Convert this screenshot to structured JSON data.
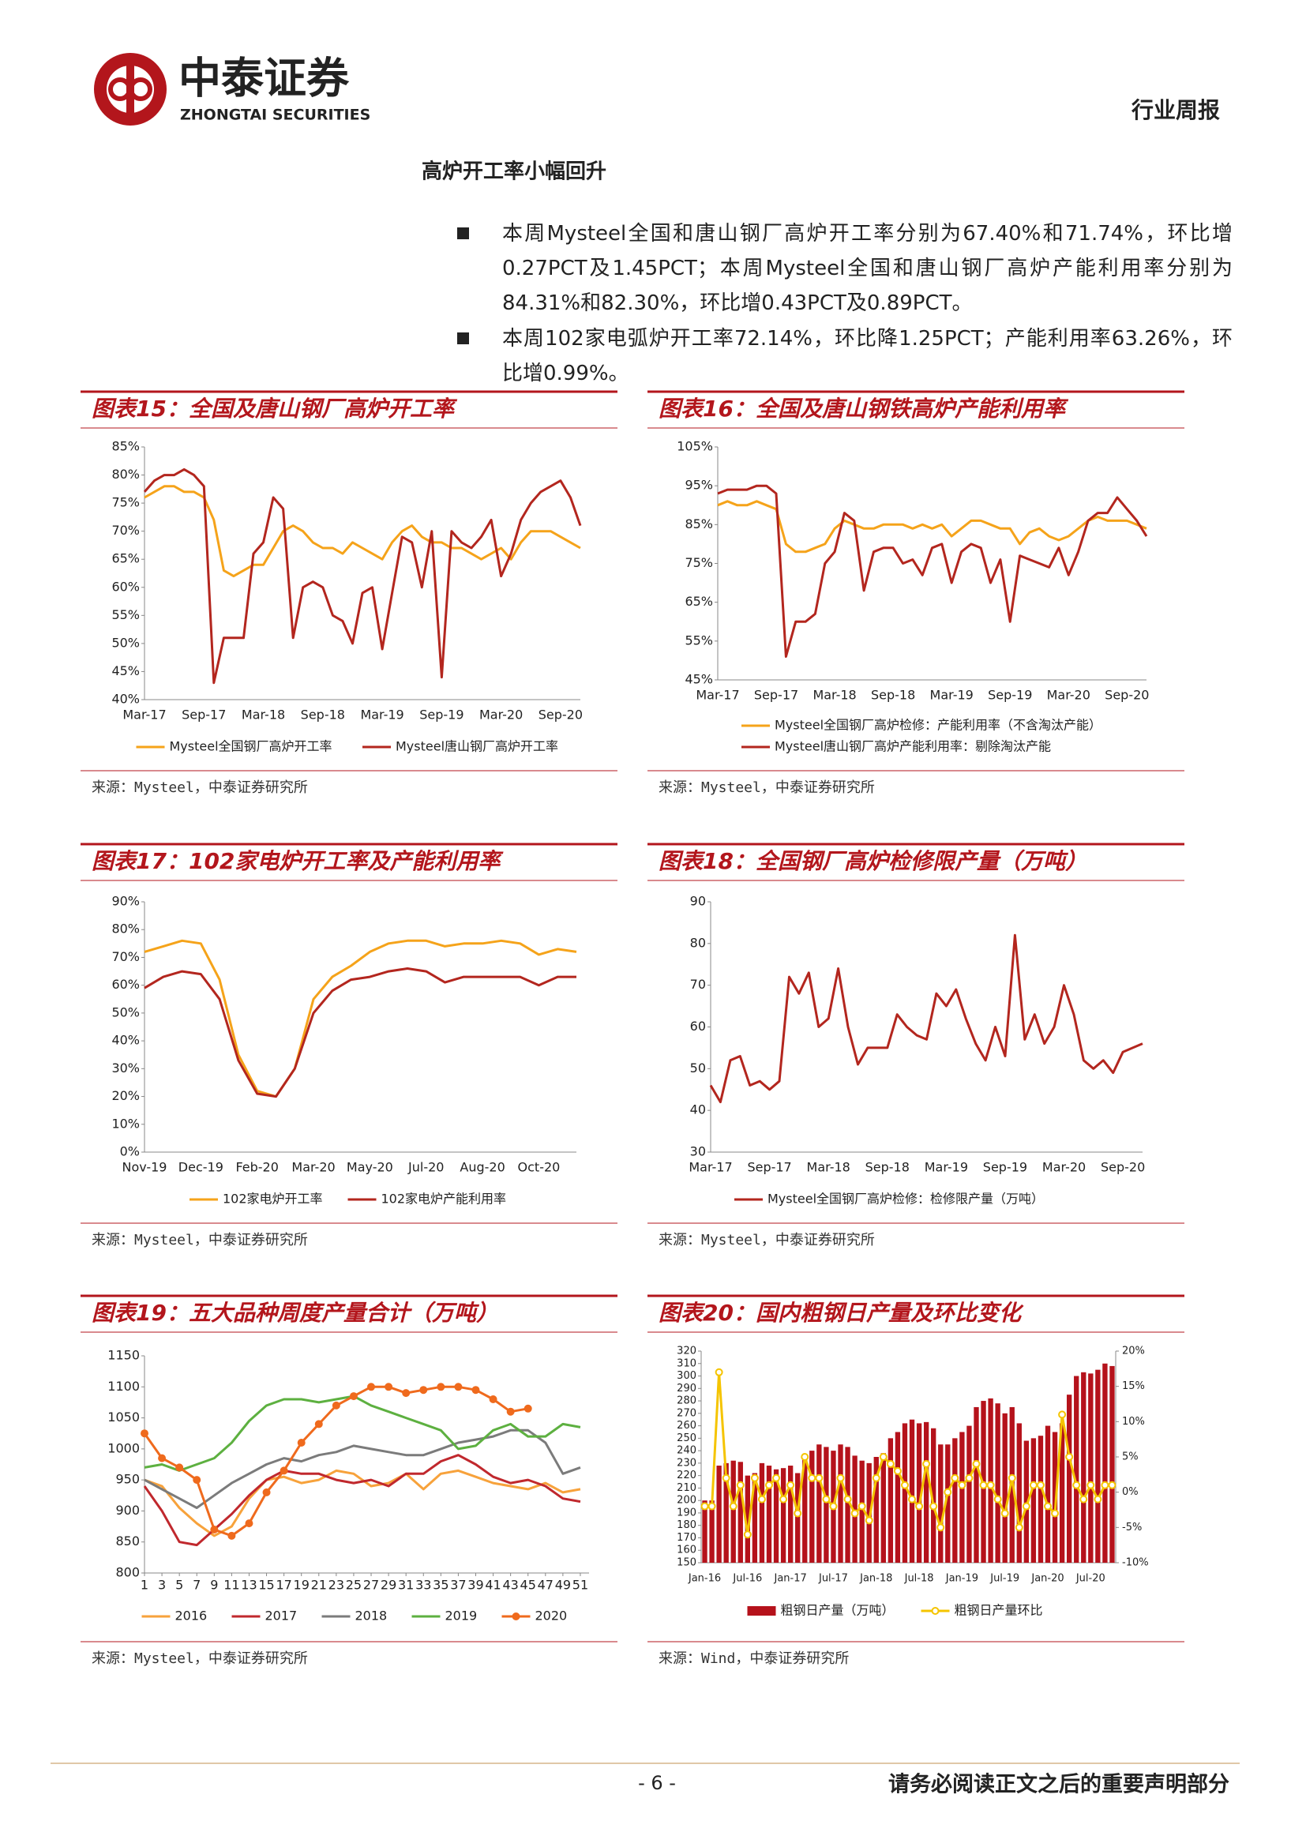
{
  "header": {
    "logo_cn": "中泰证券",
    "logo_en": "ZHONGTAI SECURITIES",
    "report_type": "行业周报"
  },
  "section_title": "高炉开工率小幅回升",
  "bullets": [
    "本周Mysteel全国和唐山钢厂高炉开工率分别为67.40%和71.74%，环比增0.27PCT及1.45PCT；本周Mysteel全国和唐山钢厂高炉产能利用率分别为84.31%和82.30%，环比增0.43PCT及0.89PCT。",
    "本周102家电弧炉开工率72.14%，环比降1.25PCT；产能利用率63.26%，环比增0.99%。"
  ],
  "chart_data": [
    {
      "type": "line",
      "title": "图表15：全国及唐山钢厂高炉开工率",
      "source": "来源：Mysteel，中泰证券研究所",
      "categories": [
        "Mar-17",
        null,
        null,
        null,
        null,
        null,
        "Sep-17",
        null,
        null,
        null,
        null,
        null,
        "Mar-18",
        null,
        null,
        null,
        null,
        null,
        "Sep-18",
        null,
        null,
        null,
        null,
        null,
        "Mar-19",
        null,
        null,
        null,
        null,
        null,
        "Sep-19",
        null,
        null,
        null,
        null,
        null,
        "Mar-20",
        null,
        null,
        null,
        null,
        null,
        "Sep-20",
        null,
        null
      ],
      "ylim": [
        40,
        85
      ],
      "yticks": [
        {
          "value": 40,
          "label": "40%"
        },
        {
          "value": 45,
          "label": "45%"
        },
        {
          "value": 50,
          "label": "50%"
        },
        {
          "value": 55,
          "label": "55%"
        },
        {
          "value": 60,
          "label": "60%"
        },
        {
          "value": 65,
          "label": "65%"
        },
        {
          "value": 70,
          "label": "70%"
        },
        {
          "value": 75,
          "label": "75%"
        },
        {
          "value": 80,
          "label": "80%"
        },
        {
          "value": 85,
          "label": "85%"
        }
      ],
      "series": [
        {
          "name": "Mysteel全国钢厂高炉开工率",
          "color": "#f5a31a",
          "values": [
            76,
            77,
            78,
            78,
            77,
            77,
            76,
            72,
            63,
            62,
            63,
            64,
            64,
            67,
            70,
            71,
            70,
            68,
            67,
            67,
            66,
            68,
            67,
            66,
            65,
            68,
            70,
            71,
            69,
            68,
            68,
            67,
            67,
            66,
            65,
            66,
            67,
            65,
            68,
            70,
            70,
            70,
            69,
            68,
            67
          ]
        },
        {
          "name": "Mysteel唐山钢厂高炉开工率",
          "color": "#b3261e",
          "values": [
            77,
            79,
            80,
            80,
            81,
            80,
            78,
            43,
            51,
            51,
            51,
            66,
            68,
            76,
            74,
            51,
            60,
            61,
            60,
            55,
            54,
            50,
            59,
            60,
            49,
            59,
            69,
            68,
            60,
            70,
            44,
            70,
            68,
            67,
            69,
            72,
            62,
            66,
            72,
            75,
            77,
            78,
            79,
            76,
            71
          ]
        }
      ]
    },
    {
      "type": "line",
      "title": "图表16：全国及唐山钢铁高炉产能利用率",
      "source": "来源：Mysteel，中泰证券研究所",
      "categories": [
        "Mar-17",
        null,
        null,
        null,
        null,
        null,
        "Sep-17",
        null,
        null,
        null,
        null,
        null,
        "Mar-18",
        null,
        null,
        null,
        null,
        null,
        "Sep-18",
        null,
        null,
        null,
        null,
        null,
        "Mar-19",
        null,
        null,
        null,
        null,
        null,
        "Sep-19",
        null,
        null,
        null,
        null,
        null,
        "Mar-20",
        null,
        null,
        null,
        null,
        null,
        "Sep-20",
        null,
        null
      ],
      "ylim": [
        45,
        105
      ],
      "yticks": [
        {
          "value": 45,
          "label": "45%"
        },
        {
          "value": 55,
          "label": "55%"
        },
        {
          "value": 65,
          "label": "65%"
        },
        {
          "value": 75,
          "label": "75%"
        },
        {
          "value": 85,
          "label": "85%"
        },
        {
          "value": 95,
          "label": "95%"
        },
        {
          "value": 105,
          "label": "105%"
        }
      ],
      "series": [
        {
          "name": "Mysteel全国钢厂高炉检修：产能利用率（不含淘汰产能）",
          "color": "#f5a31a",
          "values": [
            90,
            91,
            90,
            90,
            91,
            90,
            89,
            80,
            78,
            78,
            79,
            80,
            84,
            86,
            85,
            84,
            84,
            85,
            85,
            85,
            84,
            85,
            84,
            85,
            82,
            84,
            86,
            86,
            85,
            84,
            84,
            80,
            83,
            84,
            82,
            81,
            82,
            84,
            86,
            87,
            86,
            86,
            86,
            85,
            84
          ]
        },
        {
          "name": "Mysteel唐山钢厂高炉产能利用率：剔除淘汰产能",
          "color": "#b3261e",
          "values": [
            93,
            94,
            94,
            94,
            95,
            95,
            93,
            51,
            60,
            60,
            62,
            75,
            78,
            88,
            86,
            68,
            78,
            79,
            79,
            75,
            76,
            72,
            79,
            80,
            70,
            78,
            80,
            79,
            70,
            76,
            60,
            77,
            76,
            75,
            74,
            79,
            72,
            78,
            86,
            88,
            88,
            92,
            89,
            86,
            82
          ]
        }
      ]
    },
    {
      "type": "line",
      "title": "图表17：102家电炉开工率及产能利用率",
      "source": "来源：Mysteel，中泰证券研究所",
      "categories": [
        "Nov-19",
        null,
        null,
        "Dec-19",
        null,
        null,
        "Feb-20",
        null,
        null,
        "Mar-20",
        null,
        null,
        "May-20",
        null,
        null,
        "Jul-20",
        null,
        null,
        "Aug-20",
        null,
        null,
        "Oct-20",
        null,
        null
      ],
      "ylim": [
        0,
        90
      ],
      "yticks": [
        {
          "value": 0,
          "label": "0%"
        },
        {
          "value": 10,
          "label": "10%"
        },
        {
          "value": 20,
          "label": "20%"
        },
        {
          "value": 30,
          "label": "30%"
        },
        {
          "value": 40,
          "label": "40%"
        },
        {
          "value": 50,
          "label": "50%"
        },
        {
          "value": 60,
          "label": "60%"
        },
        {
          "value": 70,
          "label": "70%"
        },
        {
          "value": 80,
          "label": "80%"
        },
        {
          "value": 90,
          "label": "90%"
        }
      ],
      "series": [
        {
          "name": "102家电炉开工率",
          "color": "#f5a31a",
          "values": [
            72,
            74,
            76,
            75,
            62,
            35,
            22,
            20,
            30,
            55,
            63,
            67,
            72,
            75,
            76,
            76,
            74,
            75,
            75,
            76,
            75,
            71,
            73,
            72
          ]
        },
        {
          "name": "102家电炉产能利用率",
          "color": "#b3261e",
          "values": [
            59,
            63,
            65,
            64,
            55,
            33,
            21,
            20,
            30,
            50,
            58,
            62,
            63,
            65,
            66,
            65,
            61,
            63,
            63,
            63,
            63,
            60,
            63,
            63
          ]
        }
      ]
    },
    {
      "type": "line",
      "title": "图表18：全国钢厂高炉检修限产量（万吨）",
      "source": "来源：Mysteel，中泰证券研究所",
      "categories": [
        "Mar-17",
        null,
        null,
        null,
        null,
        null,
        "Sep-17",
        null,
        null,
        null,
        null,
        null,
        "Mar-18",
        null,
        null,
        null,
        null,
        null,
        "Sep-18",
        null,
        null,
        null,
        null,
        null,
        "Mar-19",
        null,
        null,
        null,
        null,
        null,
        "Sep-19",
        null,
        null,
        null,
        null,
        null,
        "Mar-20",
        null,
        null,
        null,
        null,
        null,
        "Sep-20",
        null,
        null
      ],
      "ylim": [
        30,
        90
      ],
      "yticks": [
        30,
        40,
        50,
        60,
        70,
        80,
        90
      ],
      "series": [
        {
          "name": "Mysteel全国钢厂高炉检修：检修限产量（万吨）",
          "color": "#b3261e",
          "values": [
            46,
            42,
            52,
            53,
            46,
            47,
            45,
            47,
            72,
            68,
            73,
            60,
            62,
            74,
            60,
            51,
            55,
            55,
            55,
            63,
            60,
            58,
            57,
            68,
            65,
            69,
            62,
            56,
            52,
            60,
            53,
            82,
            57,
            63,
            56,
            60,
            70,
            63,
            52,
            50,
            52,
            49,
            54,
            55,
            56
          ]
        }
      ]
    },
    {
      "type": "line",
      "title": "图表19：五大品种周度产量合计（万吨）",
      "source": "来源：Mysteel，中泰证券研究所",
      "x": [
        1,
        3,
        5,
        7,
        9,
        11,
        13,
        15,
        17,
        19,
        21,
        23,
        25,
        27,
        29,
        31,
        33,
        35,
        37,
        39,
        41,
        43,
        45,
        47,
        49,
        51
      ],
      "xlim": [
        1,
        52
      ],
      "xticks": [
        1,
        3,
        5,
        7,
        9,
        11,
        13,
        15,
        17,
        19,
        21,
        23,
        25,
        27,
        29,
        31,
        33,
        35,
        37,
        39,
        41,
        43,
        45,
        47,
        49,
        51
      ],
      "ylim": [
        800,
        1150
      ],
      "yticks": [
        800,
        850,
        900,
        950,
        1000,
        1050,
        1100,
        1150
      ],
      "series": [
        {
          "name": "2016",
          "color": "#f7a23b",
          "values": [
            950,
            940,
            905,
            880,
            860,
            875,
            920,
            950,
            955,
            945,
            950,
            965,
            960,
            940,
            945,
            960,
            935,
            960,
            965,
            955,
            945,
            940,
            935,
            945,
            930,
            935
          ]
        },
        {
          "name": "2017",
          "color": "#c0282d",
          "values": [
            940,
            900,
            850,
            845,
            870,
            895,
            925,
            950,
            965,
            960,
            960,
            950,
            945,
            950,
            940,
            960,
            960,
            980,
            990,
            975,
            955,
            945,
            950,
            940,
            920,
            915
          ]
        },
        {
          "name": "2018",
          "color": "#7b7b7b",
          "values": [
            950,
            935,
            920,
            905,
            925,
            945,
            960,
            975,
            985,
            980,
            990,
            995,
            1005,
            1000,
            995,
            990,
            990,
            1000,
            1010,
            1015,
            1020,
            1030,
            1030,
            1010,
            960,
            970
          ]
        },
        {
          "name": "2019",
          "color": "#5db040",
          "values": [
            970,
            975,
            965,
            975,
            985,
            1010,
            1045,
            1070,
            1080,
            1080,
            1075,
            1080,
            1085,
            1070,
            1060,
            1050,
            1040,
            1030,
            1000,
            1005,
            1030,
            1040,
            1020,
            1020,
            1040,
            1035
          ]
        },
        {
          "name": "2020",
          "color": "#ef6a1d",
          "markers": true,
          "values": [
            1025,
            985,
            970,
            950,
            870,
            860,
            880,
            930,
            965,
            1010,
            1040,
            1070,
            1085,
            1100,
            1100,
            1090,
            1095,
            1100,
            1100,
            1095,
            1080,
            1060,
            1065,
            null,
            null,
            null
          ]
        }
      ]
    },
    {
      "type": "bar",
      "title": "图表20：国内粗钢日产量及环比变化",
      "source": "来源：Wind，中泰证券研究所",
      "categories": [
        "Jan-16",
        null,
        null,
        null,
        null,
        null,
        "Jul-16",
        null,
        null,
        null,
        null,
        null,
        "Jan-17",
        null,
        null,
        null,
        null,
        null,
        "Jul-17",
        null,
        null,
        null,
        null,
        null,
        "Jan-18",
        null,
        null,
        null,
        null,
        null,
        "Jul-18",
        null,
        null,
        null,
        null,
        null,
        "Jan-19",
        null,
        null,
        null,
        null,
        null,
        "Jul-19",
        null,
        null,
        null,
        null,
        null,
        "Jan-20",
        null,
        null,
        null,
        null,
        null,
        "Jul-20",
        null,
        null,
        null
      ],
      "ylim": [
        150,
        320
      ],
      "yticks": [
        150,
        160,
        170,
        180,
        190,
        200,
        210,
        220,
        230,
        240,
        250,
        260,
        270,
        280,
        290,
        300,
        310,
        320
      ],
      "y2lim": [
        -10,
        20
      ],
      "y2ticks": [
        {
          "value": -10,
          "label": "-10%"
        },
        {
          "value": -5,
          "label": "-5%"
        },
        {
          "value": 0,
          "label": "0%"
        },
        {
          "value": 5,
          "label": "5%"
        },
        {
          "value": 10,
          "label": "10%"
        },
        {
          "value": 15,
          "label": "15%"
        },
        {
          "value": 20,
          "label": "20%"
        }
      ],
      "series": [
        {
          "name": "粗钢日产量（万吨）",
          "type": "bar",
          "color": "#b5121b",
          "values": [
            200,
            200,
            228,
            230,
            232,
            231,
            220,
            222,
            230,
            228,
            225,
            226,
            228,
            222,
            235,
            240,
            245,
            243,
            240,
            245,
            243,
            236,
            232,
            230,
            235,
            238,
            250,
            255,
            262,
            265,
            262,
            263,
            258,
            245,
            245,
            250,
            255,
            260,
            275,
            280,
            282,
            278,
            270,
            275,
            262,
            248,
            250,
            252,
            260,
            255,
            262,
            285,
            300,
            303,
            302,
            305,
            310,
            308
          ]
        },
        {
          "name": "粗钢日产量环比",
          "type": "line",
          "axis": "y2",
          "color": "#f5c400",
          "markers": true,
          "values": [
            -2,
            -2,
            17,
            2,
            -2,
            1,
            -6,
            2,
            -1,
            1,
            2,
            -1,
            1,
            -3,
            5,
            2,
            2,
            -1,
            -2,
            2,
            -1,
            -3,
            -2,
            -4,
            2,
            5,
            4,
            3,
            1,
            -1,
            -2,
            4,
            -2,
            -5,
            0,
            2,
            1,
            2,
            4,
            1,
            1,
            -1,
            -3,
            2,
            -5,
            -2,
            1,
            1,
            -2,
            -3,
            11,
            5,
            1,
            -1,
            1,
            -1,
            1,
            1
          ]
        }
      ]
    }
  ],
  "footer": {
    "page": "- 6 -",
    "notice": "请务必阅读正文之后的重要声明部分"
  }
}
